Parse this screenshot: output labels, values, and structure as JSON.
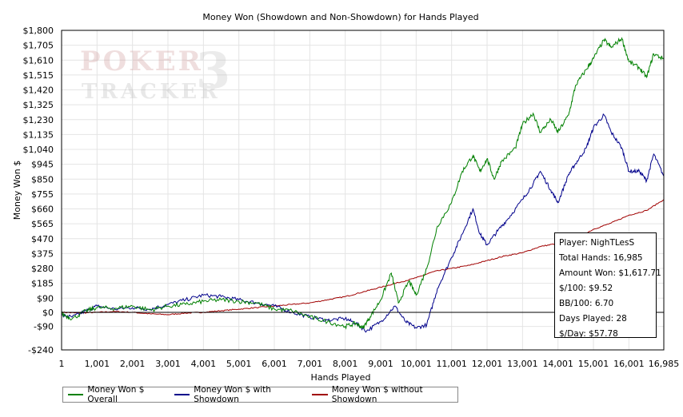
{
  "chart_data": {
    "type": "line",
    "title": "Money Won (Showdown and Non-Showdown) for Hands Played",
    "xlabel": "Hands Played",
    "ylabel": "Money Won $",
    "xlim": [
      1,
      16985
    ],
    "ylim": [
      -240,
      1800
    ],
    "x_ticks": [
      1,
      1001,
      2001,
      3001,
      4001,
      5001,
      6001,
      7001,
      8001,
      9001,
      10001,
      11001,
      12001,
      13001,
      14001,
      15001,
      16001,
      16985
    ],
    "x_tick_labels": [
      "1",
      "1,001",
      "2,001",
      "3,001",
      "4,001",
      "5,001",
      "6,001",
      "7,001",
      "8,001",
      "9,001",
      "10,001",
      "11,001",
      "12,001",
      "13,001",
      "14,001",
      "15,001",
      "16,001",
      "16,985"
    ],
    "y_ticks": [
      1800,
      1705,
      1610,
      1515,
      1420,
      1325,
      1230,
      1135,
      1040,
      945,
      850,
      755,
      660,
      565,
      470,
      375,
      280,
      185,
      90,
      0,
      -90,
      -240
    ],
    "y_tick_labels": [
      "$1,800",
      "$1,705",
      "$1,610",
      "$1,515",
      "$1,420",
      "$1,325",
      "$1,230",
      "$1,135",
      "$1,040",
      "$945",
      "$850",
      "$755",
      "$660",
      "$565",
      "$470",
      "$375",
      "$280",
      "$185",
      "$90",
      "$0",
      "-$90",
      "-$240"
    ],
    "grid": true,
    "legend_position": "bottom",
    "series": [
      {
        "name": "Money Won $ Overall",
        "color": "#008000",
        "x": [
          1,
          300,
          700,
          1000,
          1500,
          2000,
          2500,
          3000,
          3500,
          4000,
          4500,
          5000,
          5500,
          6000,
          6500,
          7000,
          7500,
          8000,
          8300,
          8500,
          8700,
          9000,
          9300,
          9500,
          9800,
          10000,
          10300,
          10600,
          11000,
          11300,
          11600,
          11800,
          12000,
          12200,
          12400,
          12800,
          13000,
          13300,
          13500,
          13800,
          14000,
          14300,
          14500,
          14800,
          15000,
          15300,
          15500,
          15800,
          16000,
          16300,
          16500,
          16700,
          16985
        ],
        "y": [
          -10,
          -40,
          10,
          30,
          25,
          40,
          15,
          40,
          50,
          70,
          80,
          70,
          60,
          20,
          10,
          -30,
          -60,
          -90,
          -70,
          -100,
          -30,
          80,
          250,
          60,
          200,
          110,
          280,
          550,
          700,
          900,
          1000,
          900,
          980,
          850,
          960,
          1050,
          1200,
          1270,
          1150,
          1230,
          1150,
          1260,
          1450,
          1550,
          1620,
          1740,
          1690,
          1750,
          1600,
          1560,
          1500,
          1650,
          1617
        ]
      },
      {
        "name": "Money Won $ with Showdown",
        "color": "#00008b",
        "x": [
          1,
          300,
          700,
          1000,
          1500,
          2000,
          2500,
          3000,
          3500,
          4000,
          4500,
          5000,
          5500,
          6000,
          6500,
          7000,
          7500,
          8000,
          8300,
          8600,
          9000,
          9400,
          9700,
          10000,
          10300,
          10600,
          11000,
          11300,
          11600,
          11800,
          12000,
          12300,
          12600,
          13000,
          13300,
          13500,
          13800,
          14000,
          14300,
          14500,
          14800,
          15000,
          15300,
          15500,
          15800,
          16000,
          16300,
          16500,
          16700,
          16985
        ],
        "y": [
          -20,
          -30,
          10,
          40,
          20,
          30,
          20,
          50,
          80,
          110,
          100,
          80,
          60,
          40,
          0,
          -30,
          -50,
          -40,
          -70,
          -120,
          -60,
          40,
          -60,
          -100,
          -80,
          150,
          350,
          500,
          660,
          500,
          430,
          520,
          600,
          720,
          820,
          900,
          780,
          700,
          880,
          950,
          1050,
          1180,
          1260,
          1150,
          1050,
          900,
          900,
          840,
          1010,
          870
        ]
      },
      {
        "name": "Money Won $ without Showdown",
        "color": "#a00000",
        "x": [
          1,
          500,
          1000,
          1500,
          2000,
          2500,
          3000,
          3500,
          4000,
          4500,
          5000,
          5500,
          6000,
          6500,
          7000,
          7500,
          8000,
          8500,
          9000,
          9500,
          10000,
          10500,
          11000,
          11500,
          12000,
          12500,
          13000,
          13500,
          14000,
          14500,
          15000,
          15500,
          16000,
          16500,
          16985
        ],
        "y": [
          0,
          -5,
          0,
          5,
          0,
          -10,
          -15,
          -5,
          0,
          10,
          20,
          30,
          40,
          50,
          60,
          80,
          100,
          130,
          160,
          190,
          220,
          260,
          280,
          300,
          330,
          360,
          380,
          420,
          440,
          470,
          530,
          570,
          620,
          650,
          720
        ]
      }
    ]
  },
  "watermark": {
    "line1": "POKER",
    "line2": "TRACKER",
    "badge": "3"
  },
  "stats": {
    "player": "Player: NighTLesS",
    "total_hands": "Total Hands: 16,985",
    "amount_won": "Amount Won: $1,617.71",
    "per100": "$/100: $9.52",
    "bb100": "BB/100: 6.70",
    "days": "Days Played: 28",
    "per_day": "$/Day: $57.78"
  }
}
